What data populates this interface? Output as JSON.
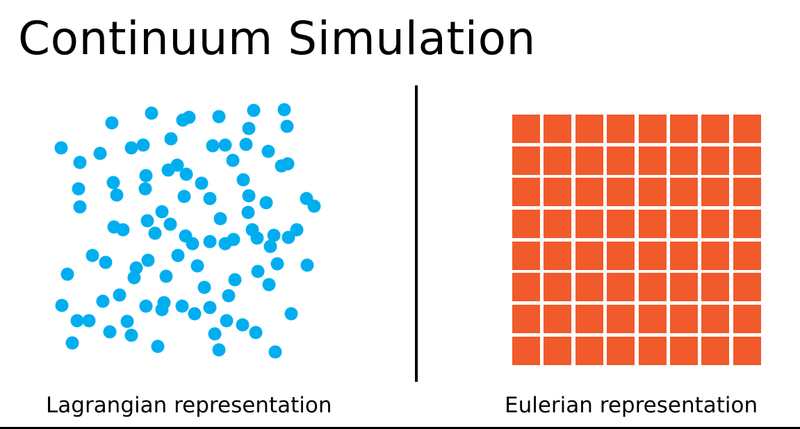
{
  "title": "Continuum Simulation",
  "captions": {
    "lagrangian": "Lagrangian representation",
    "eulerian": "Eulerian representation"
  },
  "colors": {
    "particle": "#00AEEF",
    "grid_cell": "#F15A2B",
    "divider": "#000000"
  },
  "eulerian_grid": {
    "rows": 8,
    "columns": 8
  },
  "lagrangian_particle_count": 108
}
